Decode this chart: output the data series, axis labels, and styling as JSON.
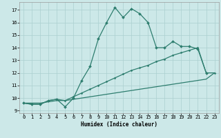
{
  "xlabel": "Humidex (Indice chaleur)",
  "background_color": "#cce8e8",
  "grid_color": "#aacfcf",
  "line_color": "#2d7d6e",
  "xlim": [
    -0.5,
    23.5
  ],
  "ylim": [
    8.8,
    17.6
  ],
  "yticks": [
    9,
    10,
    11,
    12,
    13,
    14,
    15,
    16,
    17
  ],
  "xticks": [
    0,
    1,
    2,
    3,
    4,
    5,
    6,
    7,
    8,
    9,
    10,
    11,
    12,
    13,
    14,
    15,
    16,
    17,
    18,
    19,
    20,
    21,
    22,
    23
  ],
  "line1_x": [
    0,
    1,
    2,
    3,
    4,
    5,
    6,
    7,
    8,
    9,
    10,
    11,
    12,
    13,
    14,
    15,
    16,
    17,
    18,
    19,
    20,
    21,
    22
  ],
  "line1_y": [
    9.6,
    9.5,
    9.5,
    9.8,
    9.9,
    9.3,
    10.0,
    11.4,
    12.5,
    14.7,
    16.0,
    17.2,
    16.4,
    17.1,
    16.7,
    16.0,
    14.0,
    14.0,
    14.5,
    14.1,
    14.1,
    13.9,
    12.0
  ],
  "line2_x": [
    0,
    1,
    2,
    3,
    4,
    5,
    6,
    7,
    8,
    9,
    10,
    11,
    12,
    13,
    14,
    15,
    16,
    17,
    18,
    19,
    20,
    21,
    22,
    23
  ],
  "line2_y": [
    9.6,
    9.5,
    9.5,
    9.8,
    9.9,
    9.8,
    10.1,
    10.4,
    10.7,
    11.0,
    11.3,
    11.6,
    11.9,
    12.2,
    12.4,
    12.6,
    12.9,
    13.1,
    13.4,
    13.6,
    13.8,
    14.0,
    12.0,
    12.0
  ],
  "line3_x": [
    0,
    1,
    2,
    3,
    4,
    5,
    6,
    7,
    8,
    9,
    10,
    11,
    12,
    13,
    14,
    15,
    16,
    17,
    18,
    19,
    20,
    21,
    22,
    23
  ],
  "line3_y": [
    9.6,
    9.6,
    9.6,
    9.7,
    9.8,
    9.8,
    9.9,
    10.0,
    10.1,
    10.2,
    10.3,
    10.4,
    10.5,
    10.6,
    10.7,
    10.8,
    10.9,
    11.0,
    11.1,
    11.2,
    11.3,
    11.4,
    11.5,
    12.0
  ]
}
